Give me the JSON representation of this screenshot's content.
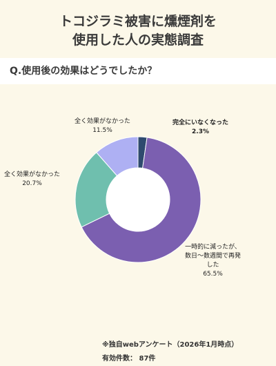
{
  "title_lines": [
    "トコジラミ被害に燻煙剤を",
    "使用した人の実態調査"
  ],
  "question": "Q.使用後の効果はどうでしたか？",
  "colors": {
    "background": "#fcf8e9",
    "slice_complete": "#2e4a6e",
    "slice_reduced": "#7b5fb0",
    "slice_no_effect_1": "#6fbfae",
    "slice_no_effect_2": "#aeb0f3"
  },
  "chart_data": {
    "type": "pie",
    "donut": true,
    "slices": [
      {
        "label_lines": [
          "完全にいなくなった"
        ],
        "value": 2.3,
        "pct": "2.3%",
        "color": "#2e4a6e"
      },
      {
        "label_lines": [
          "一時的に減ったが、",
          "数日～数週間で再発",
          "した"
        ],
        "value": 65.5,
        "pct": "65.5%",
        "color": "#7b5fb0"
      },
      {
        "label_lines": [
          "全く効果がなかった"
        ],
        "value": 20.7,
        "pct": "20.7%",
        "color": "#6fbfae"
      },
      {
        "label_lines": [
          "全く効果がなかった"
        ],
        "value": 11.5,
        "pct": "11.5%",
        "color": "#aeb0f3"
      }
    ]
  },
  "footer": {
    "source": "※独自webアンケート（2026年1月時点）",
    "count": "有効件数： 87件"
  }
}
